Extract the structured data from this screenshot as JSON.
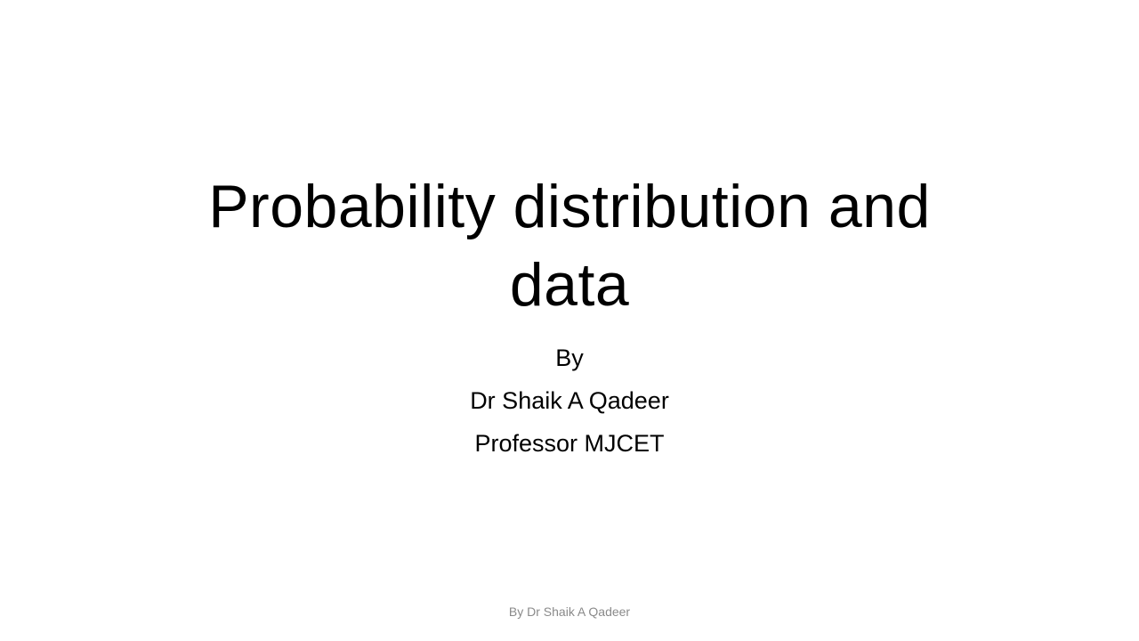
{
  "slide": {
    "title_line1": "Probability distribution and",
    "title_line2": "data",
    "subtitle": {
      "by": "By",
      "author": "Dr Shaik A Qadeer",
      "role": "Professor MJCET"
    },
    "footer": "By Dr Shaik A Qadeer"
  }
}
